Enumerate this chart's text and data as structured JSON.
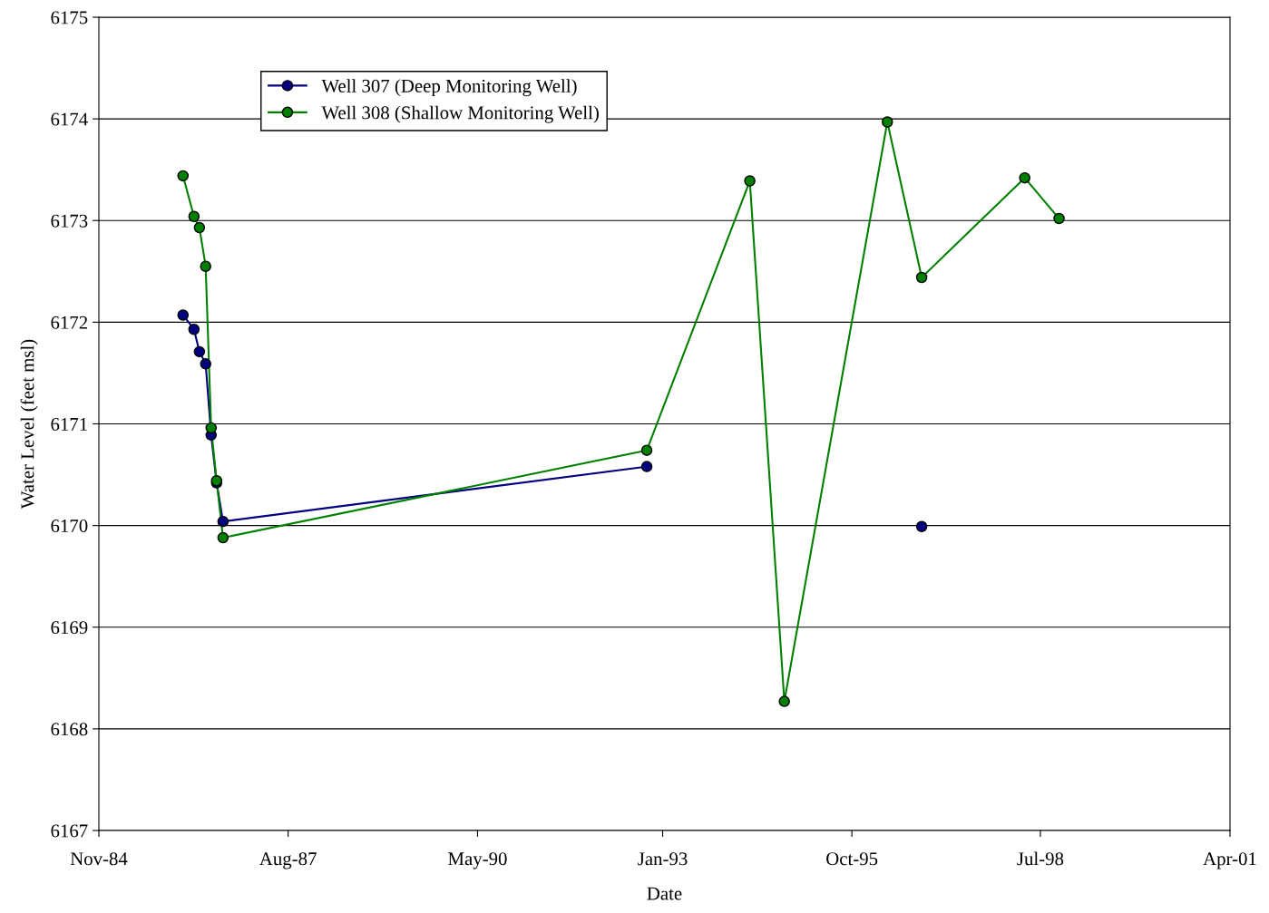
{
  "chart_data": {
    "type": "line",
    "xlabel": "Date",
    "ylabel": "Water Level (feet msl)",
    "x": [
      "1986-02-04",
      "1986-04-03",
      "1986-05-02",
      "1986-06-04",
      "1986-07-03",
      "1986-08-01",
      "1986-09-04",
      "1992-10-28",
      "1994-04-27",
      "1994-10-27",
      "1996-04-25",
      "1996-10-24",
      "1998-04-23",
      "1998-10-22"
    ],
    "series": [
      {
        "name": "Well 307 (Deep Monitoring Well)",
        "color": "#000080",
        "values": [
          6172.07,
          6171.93,
          6171.71,
          6171.59,
          6170.89,
          6170.42,
          6170.04,
          6170.58,
          null,
          null,
          null,
          6169.99,
          null,
          null
        ]
      },
      {
        "name": "Well 308 (Shallow Monitoring Well)",
        "color": "#008000",
        "values": [
          6173.44,
          6173.04,
          6172.93,
          6172.55,
          6170.96,
          6170.44,
          6169.88,
          6170.74,
          6173.39,
          6168.27,
          6173.97,
          6172.44,
          6173.42,
          6173.02
        ]
      }
    ],
    "xlim": [
      "1984-11-15",
      "2001-04-15"
    ],
    "xticks": [
      {
        "value": "1984-11-15",
        "label": "Nov-84"
      },
      {
        "value": "1987-08-15",
        "label": "Aug-87"
      },
      {
        "value": "1990-05-15",
        "label": "May-90"
      },
      {
        "value": "1993-01-20",
        "label": "Jan-93"
      },
      {
        "value": "1995-10-20",
        "label": "Oct-95"
      },
      {
        "value": "1998-07-15",
        "label": "Jul-98"
      },
      {
        "value": "2001-04-15",
        "label": "Apr-01"
      }
    ],
    "ylim": [
      6167,
      6175
    ],
    "yticks": [
      6167,
      6168,
      6169,
      6170,
      6171,
      6172,
      6173,
      6174,
      6175
    ],
    "grid": "y",
    "legend": "top left",
    "marker": "circle",
    "line_style": "solid"
  }
}
